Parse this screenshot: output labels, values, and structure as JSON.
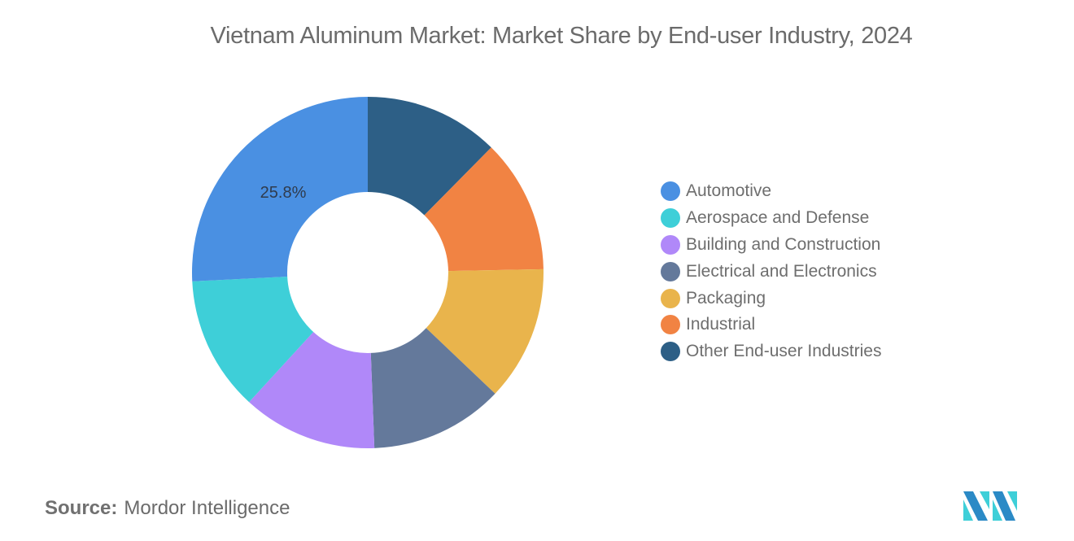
{
  "title": "Vietnam Aluminum Market: Market Share by End-user Industry, 2024",
  "chart_data": {
    "type": "pie",
    "subtype": "donut",
    "title": "Vietnam Aluminum Market: Market Share by End-user Industry, 2024",
    "categories": [
      "Automotive",
      "Aerospace and Defense",
      "Building and Construction",
      "Electrical and Electronics",
      "Packaging",
      "Industrial",
      "Other End-user Industries"
    ],
    "values": [
      25.8,
      12.4,
      12.4,
      12.3,
      12.4,
      12.3,
      12.4
    ],
    "colors": [
      "#4a90e2",
      "#3ecfd8",
      "#b088f9",
      "#64799b",
      "#e9b44c",
      "#f18343",
      "#2d5f86"
    ],
    "data_labels": [
      {
        "category": "Automotive",
        "text": "25.8%"
      }
    ],
    "legend_position": "right",
    "drawing_order_clockwise_from_top": [
      "Other End-user Industries",
      "Industrial",
      "Packaging",
      "Electrical and Electronics",
      "Building and Construction",
      "Aerospace and Defense",
      "Automotive"
    ]
  },
  "legend": {
    "items": [
      {
        "label": "Automotive",
        "color": "#4a90e2"
      },
      {
        "label": "Aerospace and Defense",
        "color": "#3ecfd8"
      },
      {
        "label": "Building and Construction",
        "color": "#b088f9"
      },
      {
        "label": "Electrical and Electronics",
        "color": "#64799b"
      },
      {
        "label": "Packaging",
        "color": "#e9b44c"
      },
      {
        "label": "Industrial",
        "color": "#f18343"
      },
      {
        "label": "Other End-user Industries",
        "color": "#2d5f86"
      }
    ]
  },
  "data_label": "25.8%",
  "source": {
    "key": "Source:",
    "value": "Mordor Intelligence"
  },
  "logo": {
    "icon": "mordor-intelligence-logo-icon",
    "colors": [
      "#2b8ac6",
      "#3ecfd8"
    ]
  }
}
